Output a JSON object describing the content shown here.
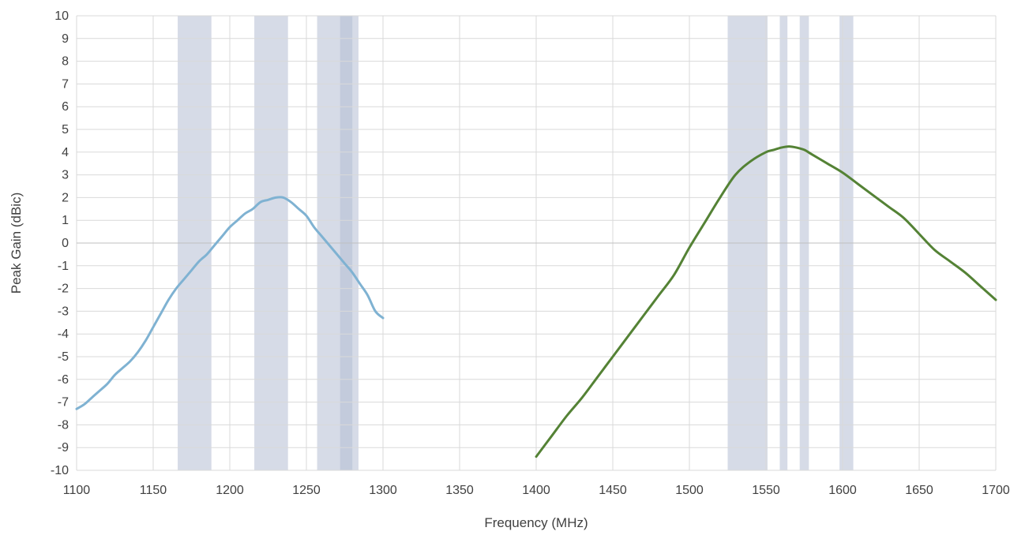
{
  "chart_data": {
    "type": "line",
    "title": "",
    "xlabel": "Frequency (MHz)",
    "ylabel": "Peak Gain (dBic)",
    "xlim": [
      1100,
      1700
    ],
    "ylim": [
      -10,
      10
    ],
    "x_ticks": [
      1100,
      1150,
      1200,
      1250,
      1300,
      1350,
      1400,
      1450,
      1500,
      1550,
      1600,
      1650,
      1700
    ],
    "y_ticks": [
      -10,
      -9,
      -8,
      -7,
      -6,
      -5,
      -4,
      -3,
      -2,
      -1,
      0,
      1,
      2,
      3,
      4,
      5,
      6,
      7,
      8,
      9,
      10
    ],
    "grid": true,
    "legend": "none",
    "band_color": "#b4bed4",
    "bands": [
      {
        "x0": 1166,
        "x1": 1188
      },
      {
        "x0": 1216,
        "x1": 1238
      },
      {
        "x0": 1257,
        "x1": 1284
      },
      {
        "x0": 1272,
        "x1": 1280
      },
      {
        "x0": 1525,
        "x1": 1551
      },
      {
        "x0": 1559,
        "x1": 1564
      },
      {
        "x0": 1572,
        "x1": 1578
      },
      {
        "x0": 1598,
        "x1": 1607
      }
    ],
    "series": [
      {
        "color": "#7fb2d2",
        "x": [
          1100,
          1105,
          1110,
          1115,
          1120,
          1125,
          1130,
          1135,
          1140,
          1145,
          1150,
          1155,
          1160,
          1165,
          1170,
          1175,
          1180,
          1185,
          1190,
          1195,
          1200,
          1205,
          1210,
          1215,
          1220,
          1225,
          1230,
          1235,
          1240,
          1245,
          1250,
          1255,
          1260,
          1265,
          1270,
          1275,
          1280,
          1285,
          1290,
          1295,
          1300
        ],
        "y": [
          -7.3,
          -7.1,
          -6.8,
          -6.5,
          -6.2,
          -5.8,
          -5.5,
          -5.2,
          -4.8,
          -4.3,
          -3.7,
          -3.1,
          -2.5,
          -2.0,
          -1.6,
          -1.2,
          -0.8,
          -0.5,
          -0.1,
          0.3,
          0.7,
          1.0,
          1.3,
          1.5,
          1.8,
          1.9,
          2.0,
          2.0,
          1.8,
          1.5,
          1.2,
          0.7,
          0.3,
          -0.1,
          -0.5,
          -0.9,
          -1.3,
          -1.8,
          -2.3,
          -3.0,
          -3.3
        ]
      },
      {
        "color": "#548235",
        "x": [
          1400,
          1410,
          1420,
          1430,
          1440,
          1450,
          1460,
          1470,
          1480,
          1490,
          1500,
          1510,
          1520,
          1530,
          1540,
          1550,
          1555,
          1560,
          1565,
          1570,
          1575,
          1580,
          1590,
          1600,
          1610,
          1620,
          1630,
          1640,
          1650,
          1660,
          1670,
          1680,
          1690,
          1700
        ],
        "y": [
          -9.4,
          -8.5,
          -7.6,
          -6.8,
          -5.9,
          -5.0,
          -4.1,
          -3.2,
          -2.3,
          -1.4,
          -0.2,
          0.9,
          2.0,
          3.0,
          3.6,
          4.0,
          4.1,
          4.2,
          4.25,
          4.2,
          4.1,
          3.9,
          3.5,
          3.1,
          2.6,
          2.1,
          1.6,
          1.1,
          0.4,
          -0.3,
          -0.8,
          -1.3,
          -1.9,
          -2.5
        ]
      }
    ]
  }
}
